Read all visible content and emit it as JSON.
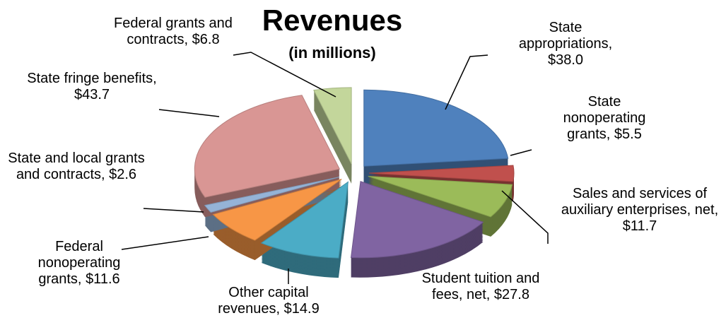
{
  "chart_data": {
    "type": "pie",
    "title": "Revenues",
    "subtitle": "(in millions)",
    "categories": [
      "State appropriations,",
      "State nonoperating grants,",
      "Sales and services of auxiliary enterprises, net,",
      "Student tuition and fees, net,",
      "Other capital revenues,",
      "Federal nonoperating grants,",
      "State and local grants and contracts,",
      "State fringe benefits,",
      "Federal grants and contracts,"
    ],
    "values": [
      38.0,
      5.5,
      11.7,
      27.8,
      14.9,
      11.6,
      2.6,
      43.7,
      6.8
    ],
    "value_labels": [
      "$38.0",
      "$5.5",
      "$11.7",
      "$27.8",
      "$14.9",
      "$11.6",
      "$2.6",
      "$43.7",
      "$6.8"
    ],
    "colors": [
      "#4f81bd",
      "#c0504d",
      "#9bbb59",
      "#8064a2",
      "#4bacc6",
      "#f79646",
      "#95b3d7",
      "#d99694",
      "#c3d69b"
    ]
  }
}
